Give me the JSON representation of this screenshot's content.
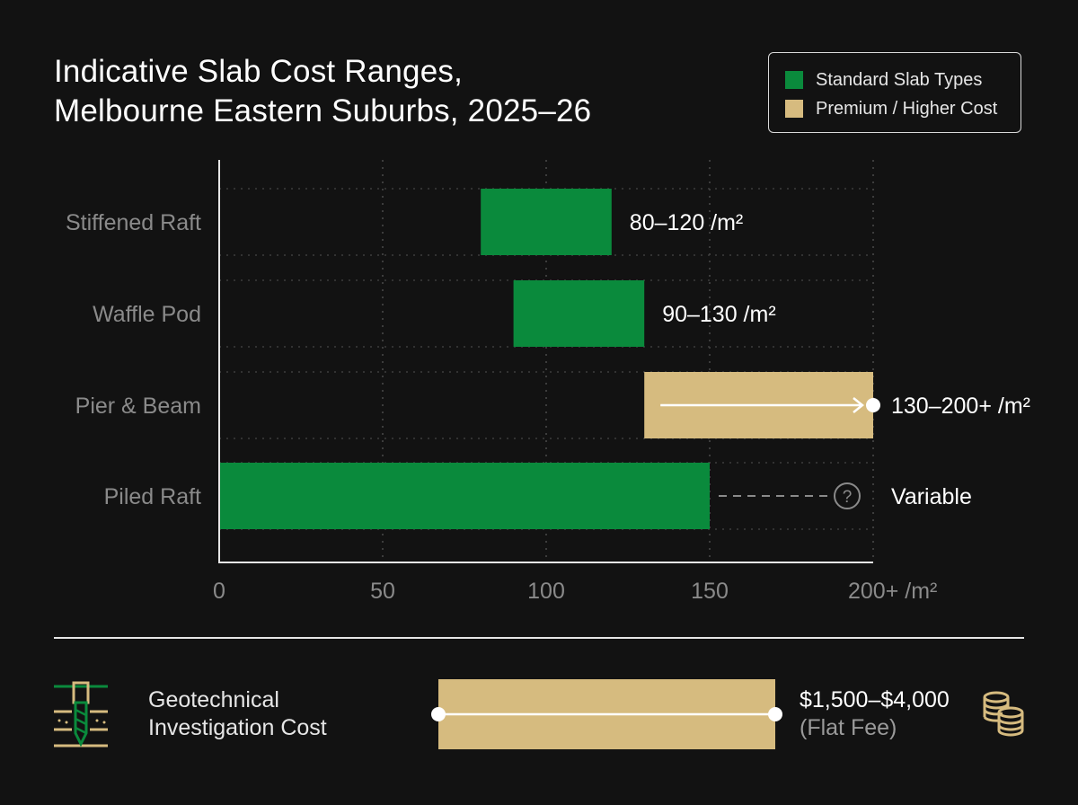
{
  "title_line1": "Indicative Slab Cost Ranges,",
  "title_line2": "Melbourne Eastern Suburbs, 2025–26",
  "colors": {
    "standard": "#0a8a3c",
    "premium": "#d6bb7f",
    "background": "#121212"
  },
  "legend": [
    {
      "label": "Standard Slab Types",
      "color": "#0a8a3c"
    },
    {
      "label": "Premium / Higher Cost",
      "color": "#d6bb7f"
    }
  ],
  "chart_data": {
    "type": "bar",
    "orientation": "horizontal-range",
    "categories": [
      "Stiffened Raft",
      "Waffle Pod",
      "Pier & Beam",
      "Piled Raft"
    ],
    "series": [
      {
        "name": "Standard Slab Types",
        "ranges": [
          [
            80,
            120
          ],
          [
            90,
            130
          ],
          null,
          [
            0,
            150
          ]
        ]
      },
      {
        "name": "Premium / Higher Cost",
        "ranges": [
          null,
          null,
          [
            130,
            200
          ],
          null
        ]
      }
    ],
    "value_labels": [
      "80–120 /m²",
      "90–130 /m²",
      "130–200+ /m²",
      "Variable"
    ],
    "open_ended": [
      false,
      false,
      true,
      false
    ],
    "uncertain": [
      false,
      false,
      false,
      true
    ],
    "x_ticks": [
      "0",
      "50",
      "100",
      "150",
      "200+ /m²"
    ],
    "x_tick_values": [
      0,
      50,
      100,
      150,
      200
    ],
    "xlim": [
      0,
      200
    ],
    "grid": true,
    "legend_position": "top-right"
  },
  "geotech": {
    "label_line1": "Geotechnical",
    "label_line2": "Investigation Cost",
    "value": "$1,500–$4,000",
    "note": "(Flat Fee)",
    "icon": "drill-icon",
    "coins_icon": "coins-icon"
  }
}
